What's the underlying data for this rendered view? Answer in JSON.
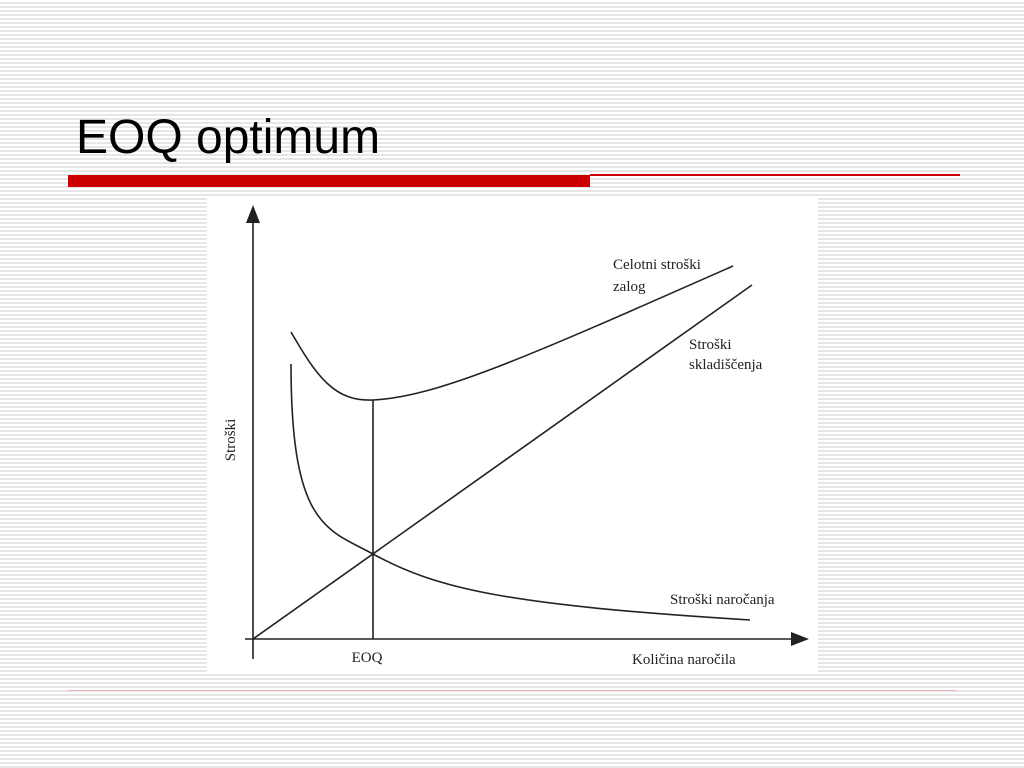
{
  "slide": {
    "title": "EOQ optimum",
    "colors": {
      "accent": "#cc0000",
      "background_stripe": "#e6e6e6",
      "line": "#222222"
    }
  },
  "diagram": {
    "y_axis_label": "Stroški",
    "x_axis_label": "Količina naročila",
    "optimum_label": "EOQ",
    "total_cost_label_line1": "Celotni stroški",
    "total_cost_label_line2": "zalog",
    "holding_cost_label_line1": "Stroški",
    "holding_cost_label_line2": "skladiščenja",
    "ordering_cost_label": "Stroški naročanja"
  }
}
